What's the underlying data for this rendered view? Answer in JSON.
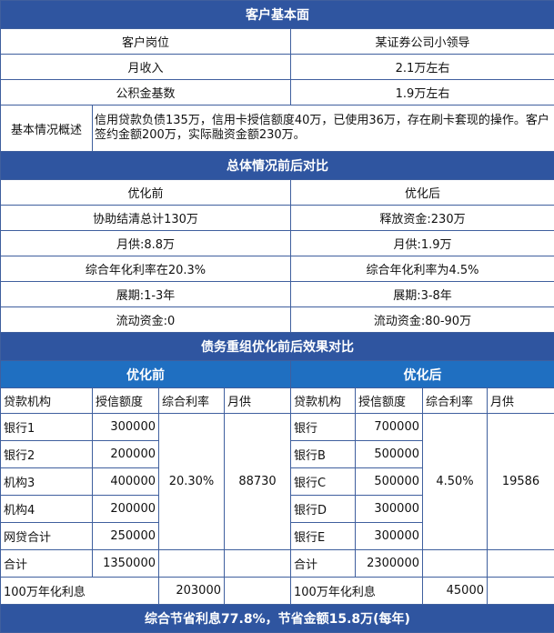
{
  "basic": {
    "title": "客户基本面",
    "rows": [
      [
        "客户岗位",
        "某证券公司小领导"
      ],
      [
        "月收入",
        "2.1万左右"
      ],
      [
        "公积金基数",
        "1.9万左右"
      ]
    ],
    "summary_label": "基本情况概述",
    "summary_text": "信用贷款负债135万，信用卡授信额度40万，已使用36万，存在刷卡套现的操作。客户签约金额200万，实际融资金额230万。"
  },
  "overall": {
    "title": "总体情况前后对比",
    "rows": [
      [
        "优化前",
        "优化后"
      ],
      [
        "协助结清总计130万",
        "释放资金:230万"
      ],
      [
        "月供:8.8万",
        "月供:1.9万"
      ],
      [
        "综合年化利率在20.3%",
        "综合年化利率为4.5%"
      ],
      [
        "展期:1-3年",
        "展期:3-8年"
      ],
      [
        "流动资金:0",
        "流动资金:80-90万"
      ]
    ]
  },
  "debt": {
    "title": "债务重组优化前后效果对比",
    "before_label": "优化前",
    "after_label": "优化后",
    "columns": [
      "贷款机构",
      "授信额度",
      "综合利率",
      "月供"
    ],
    "before": {
      "rows": [
        [
          "银行1",
          "300000"
        ],
        [
          "银行2",
          "200000"
        ],
        [
          "机构3",
          "400000"
        ],
        [
          "机构4",
          "200000"
        ],
        [
          "网贷合计",
          "250000"
        ]
      ],
      "rate": "20.30%",
      "monthly": "88730",
      "total_label": "合计",
      "total": "1350000",
      "interest_label": "100万年化利息",
      "interest": "203000"
    },
    "after": {
      "rows": [
        [
          "银行",
          "700000"
        ],
        [
          "银行B",
          "500000"
        ],
        [
          "银行C",
          "500000"
        ],
        [
          "银行D",
          "300000"
        ],
        [
          "银行E",
          "300000"
        ]
      ],
      "rate": "4.50%",
      "monthly": "19586",
      "total_label": "合计",
      "total": "2300000",
      "interest_label": "100万年化利息",
      "interest": "45000"
    },
    "footer": "综合节省利息77.8%，节省金额15.8万(每年)"
  },
  "colors": {
    "header": "#2f55a0",
    "subheader": "#1f6fc1",
    "border": "#3f5f9e"
  }
}
